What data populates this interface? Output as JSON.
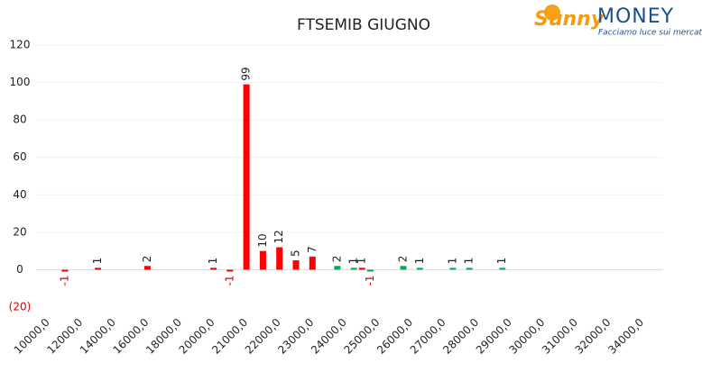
{
  "logo": {
    "brand": "Sunny",
    "brand2": "MONEY",
    "tagline": "Facciamo luce sui mercati"
  },
  "chart_data": {
    "type": "bar",
    "title": "FTSEMIB GIUGNO",
    "categories": [
      "10000,0",
      null,
      "12000,0",
      null,
      "14000,0",
      null,
      "16000,0",
      null,
      "18000,0",
      null,
      "20000,0",
      null,
      "21000,0",
      null,
      "22000,0",
      null,
      "23000,0",
      null,
      "24000,0",
      null,
      "25000,0",
      null,
      "26000,0",
      null,
      "27000,0",
      null,
      "28000,0",
      null,
      "29000,0",
      null,
      "30000,0",
      null,
      "31000,0",
      null,
      "32000,0",
      null,
      "34000,0",
      null
    ],
    "series": [
      {
        "color": "#00b050",
        "values": [
          null,
          null,
          null,
          null,
          null,
          null,
          null,
          null,
          null,
          null,
          null,
          null,
          null,
          null,
          null,
          null,
          null,
          null,
          2,
          1,
          -1,
          null,
          2,
          1,
          null,
          1,
          1,
          null,
          1,
          null,
          null,
          null,
          null,
          null,
          null,
          null,
          null,
          null
        ]
      },
      {
        "color": "#ff0000",
        "values": [
          null,
          -1,
          null,
          1,
          null,
          null,
          2,
          null,
          null,
          null,
          1,
          -1,
          99,
          10,
          12,
          5,
          7,
          null,
          null,
          1,
          null,
          null,
          null,
          null,
          null,
          null,
          null,
          null,
          null,
          null,
          null,
          null,
          null,
          null,
          null,
          null,
          null,
          null
        ]
      }
    ],
    "ylim": [
      -20,
      120
    ],
    "yticks": [
      {
        "value": -20,
        "label": "(20)"
      },
      0,
      20,
      40,
      60,
      80,
      100,
      120
    ],
    "grid": true
  }
}
